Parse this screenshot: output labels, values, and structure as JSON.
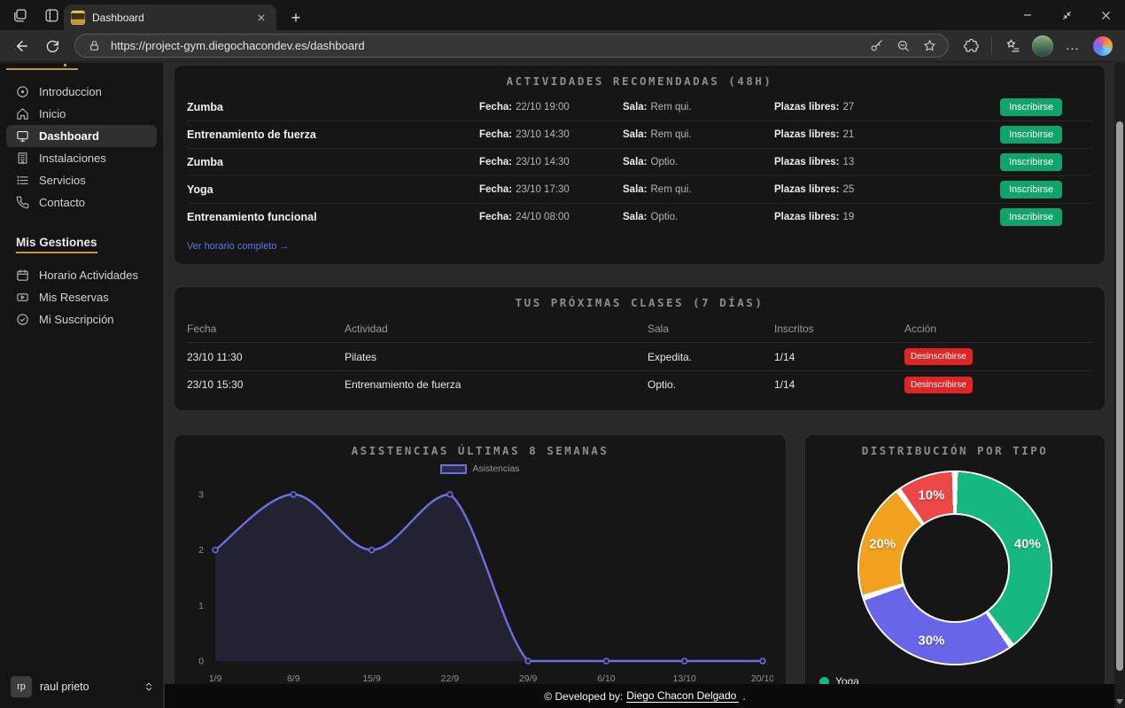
{
  "browser": {
    "tab": {
      "title": "Dashboard"
    },
    "url": "https://project-gym.diegochacondev.es/dashboard",
    "icons": {
      "new_tab": "+",
      "more": "…"
    }
  },
  "sidebar": {
    "nav": [
      {
        "label": "Introduccion",
        "icon": "info-icon",
        "active": false
      },
      {
        "label": "Inicio",
        "icon": "home-icon",
        "active": false
      },
      {
        "label": "Dashboard",
        "icon": "monitor-icon",
        "active": true
      },
      {
        "label": "Instalaciones",
        "icon": "building-icon",
        "active": false
      },
      {
        "label": "Servicios",
        "icon": "list-icon",
        "active": false
      },
      {
        "label": "Contacto",
        "icon": "phone-icon",
        "active": false
      }
    ],
    "section_title": "Mis Gestiones",
    "gestiones": [
      {
        "label": "Horario Actividades",
        "icon": "calendar-icon"
      },
      {
        "label": "Mis Reservas",
        "icon": "ticket-icon"
      },
      {
        "label": "Mi Suscripción",
        "icon": "check-circle-icon"
      }
    ],
    "user": {
      "initials": "rp",
      "name": "raul prieto"
    }
  },
  "activities": {
    "title": "ACTIVIDADES RECOMENDADAS (48H)",
    "labels": {
      "fecha": "Fecha:",
      "sala": "Sala:",
      "plazas": "Plazas libres:"
    },
    "button": "Inscribirse",
    "rows": [
      {
        "name": "Zumba",
        "fecha": "22/10 19:00",
        "sala": "Rem qui.",
        "plazas": "27"
      },
      {
        "name": "Entrenamiento de fuerza",
        "fecha": "23/10 14:30",
        "sala": "Rem qui.",
        "plazas": "21"
      },
      {
        "name": "Zumba",
        "fecha": "23/10 14:30",
        "sala": "Optio.",
        "plazas": "13"
      },
      {
        "name": "Yoga",
        "fecha": "23/10 17:30",
        "sala": "Rem qui.",
        "plazas": "25"
      },
      {
        "name": "Entrenamiento funcional",
        "fecha": "24/10 08:00",
        "sala": "Optio.",
        "plazas": "19"
      }
    ],
    "link": "Ver horario completo →"
  },
  "classes": {
    "title": "TUS PRÓXIMAS CLASES (7 DÍAS)",
    "headers": [
      "Fecha",
      "Actividad",
      "Sala",
      "Inscritos",
      "Acción"
    ],
    "button": "Desinscribirse",
    "rows": [
      {
        "fecha": "23/10 11:30",
        "actividad": "Pilates",
        "sala": "Expedita.",
        "inscritos": "1/14"
      },
      {
        "fecha": "23/10 15:30",
        "actividad": "Entrenamiento de fuerza",
        "sala": "Optio.",
        "inscritos": "1/14"
      }
    ]
  },
  "chart_data": [
    {
      "type": "line",
      "title": "ASISTENCIAS ÚLTIMAS 8 SEMANAS",
      "x": [
        "1/9",
        "8/9",
        "15/9",
        "22/9",
        "29/9",
        "6/10",
        "13/10",
        "20/10"
      ],
      "series": [
        {
          "name": "Asistencias",
          "values": [
            2,
            3,
            2,
            3,
            0,
            0,
            0,
            0
          ]
        }
      ],
      "ylim": [
        0,
        3
      ],
      "yticks": [
        0,
        1,
        2,
        3
      ],
      "grid": false,
      "legend_position": "top-center",
      "line_color": "#6d6ee0",
      "fill_color": "rgba(109,110,224,0.15)",
      "point_color": "#23233f"
    },
    {
      "type": "donut",
      "title": "DISTRIBUCIÓN POR TIPO",
      "slices": [
        {
          "label": "Yoga",
          "value": 40,
          "color": "#15b881"
        },
        {
          "label": "",
          "value": 30,
          "color": "#6965e9"
        },
        {
          "label": "",
          "value": 20,
          "color": "#f1a11b"
        },
        {
          "label": "",
          "value": 10,
          "color": "#ee4747"
        }
      ],
      "border_color": "#ffffff",
      "legend": [
        {
          "label": "Yoga",
          "color": "#15b881"
        }
      ],
      "legend_position": "bottom-left"
    }
  ],
  "footer": {
    "prefix": "© Developed by:",
    "link": "Diego Chacon Delgado",
    "suffix": "."
  },
  "colors": {
    "green": "#10a46d",
    "red": "#df2626",
    "yellow": "#c9972b",
    "link": "#6673e8"
  }
}
